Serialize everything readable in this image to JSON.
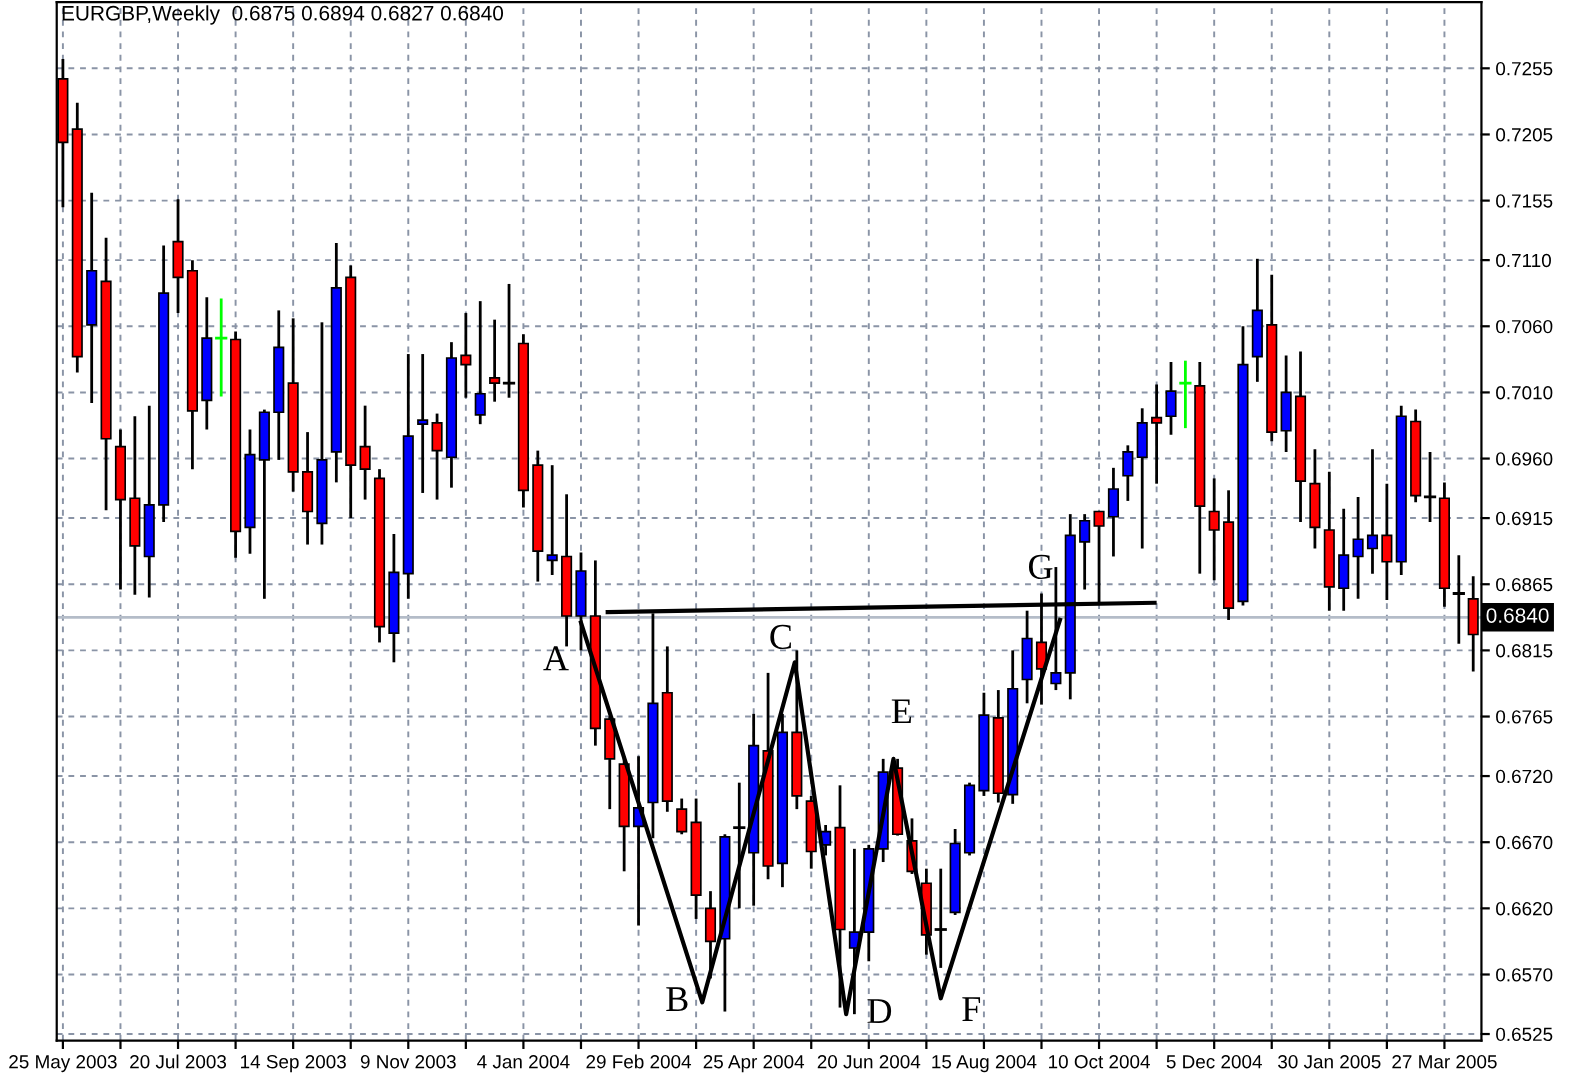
{
  "chart_data": {
    "type": "candlestick",
    "title": "EURGBP,Weekly  0.6875 0.6894 0.6827 0.6840",
    "xlim": [
      "2003-05-22",
      "2005-04-14"
    ],
    "ylim": [
      0.652,
      0.7305
    ],
    "xticks": [
      {
        "value": "2003-05-25",
        "label": "25 May 2003"
      },
      {
        "value": "2003-06-22",
        "label": null
      },
      {
        "value": "2003-07-20",
        "label": "20 Jul 2003"
      },
      {
        "value": "2003-08-17",
        "label": null
      },
      {
        "value": "2003-09-14",
        "label": "14 Sep 2003"
      },
      {
        "value": "2003-10-12",
        "label": null
      },
      {
        "value": "2003-11-09",
        "label": "9 Nov 2003"
      },
      {
        "value": "2003-12-07",
        "label": null
      },
      {
        "value": "2004-01-04",
        "label": "4 Jan 2004"
      },
      {
        "value": "2004-02-01",
        "label": null
      },
      {
        "value": "2004-02-29",
        "label": "29 Feb 2004"
      },
      {
        "value": "2004-03-28",
        "label": null
      },
      {
        "value": "2004-04-25",
        "label": "25 Apr 2004"
      },
      {
        "value": "2004-05-23",
        "label": null
      },
      {
        "value": "2004-06-20",
        "label": "20 Jun 2004"
      },
      {
        "value": "2004-07-18",
        "label": null
      },
      {
        "value": "2004-08-15",
        "label": "15 Aug 2004"
      },
      {
        "value": "2004-09-12",
        "label": null
      },
      {
        "value": "2004-10-10",
        "label": "10 Oct 2004"
      },
      {
        "value": "2004-11-07",
        "label": null
      },
      {
        "value": "2004-12-05",
        "label": "5 Dec 2004"
      },
      {
        "value": "2005-01-02",
        "label": null
      },
      {
        "value": "2005-01-30",
        "label": "30 Jan 2005"
      },
      {
        "value": "2005-02-27",
        "label": null
      },
      {
        "value": "2005-03-27",
        "label": "27 Mar 2005"
      }
    ],
    "yticks": [
      0.6525,
      {
        "value": 0.657,
        "label": "0.6570"
      },
      {
        "value": 0.662,
        "label": "0.6620"
      },
      {
        "value": 0.667,
        "label": "0.6670"
      },
      {
        "value": 0.672,
        "label": "0.6720"
      },
      0.6765,
      0.6815,
      0.6865,
      0.6915,
      {
        "value": 0.696,
        "label": "0.6960"
      },
      {
        "value": 0.701,
        "label": "0.7010"
      },
      {
        "value": 0.706,
        "label": "0.7060"
      },
      {
        "value": 0.711,
        "label": "0.7110"
      },
      0.7155,
      0.7205,
      0.7255
    ],
    "grid": true,
    "legend": false,
    "ref_lines": [
      {
        "axis": "y",
        "value": 0.684,
        "label": "0.6840",
        "color": "#b4bcc8"
      }
    ],
    "annotations": [
      {
        "text": "A",
        "x": "2004-02-01",
        "y": 0.6836
      },
      {
        "text": "B",
        "x": "2004-03-31",
        "y": 0.6549
      },
      {
        "text": "C",
        "x": "2004-05-15",
        "y": 0.6806
      },
      {
        "text": "D",
        "x": "2004-06-09",
        "y": 0.654
      },
      {
        "text": "E",
        "x": "2004-07-02",
        "y": 0.6733
      },
      {
        "text": "F",
        "x": "2004-07-25",
        "y": 0.6552
      },
      {
        "text": "G",
        "x": "2004-09-21",
        "y": 0.6838
      }
    ],
    "series": [
      {
        "x": [
          "2003-05-25",
          "2003-06-01",
          "2003-06-08",
          "2003-06-15",
          "2003-06-22",
          "2003-06-29",
          "2003-07-06",
          "2003-07-13",
          "2003-07-20",
          "2003-07-27",
          "2003-08-03",
          "2003-08-10",
          "2003-08-17",
          "2003-08-24",
          "2003-08-31",
          "2003-09-07",
          "2003-09-14",
          "2003-09-21",
          "2003-09-28",
          "2003-10-05",
          "2003-10-12",
          "2003-10-19",
          "2003-10-26",
          "2003-11-02",
          "2003-11-09",
          "2003-11-16",
          "2003-11-23",
          "2003-11-30",
          "2003-12-07",
          "2003-12-14",
          "2003-12-21",
          "2003-12-28",
          "2004-01-04",
          "2004-01-11",
          "2004-01-18",
          "2004-01-25",
          "2004-02-01",
          "2004-02-08",
          "2004-02-15",
          "2004-02-22",
          "2004-02-29",
          "2004-03-07",
          "2004-03-14",
          "2004-03-21",
          "2004-03-28",
          "2004-04-04",
          "2004-04-11",
          "2004-04-18",
          "2004-04-25",
          "2004-05-02",
          "2004-05-09",
          "2004-05-16",
          "2004-05-23",
          "2004-05-30",
          "2004-06-06",
          "2004-06-13",
          "2004-06-20",
          "2004-06-27",
          "2004-07-04",
          "2004-07-11",
          "2004-07-18",
          "2004-07-25",
          "2004-08-01",
          "2004-08-08",
          "2004-08-15",
          "2004-08-22",
          "2004-08-29",
          "2004-09-05",
          "2004-09-12",
          "2004-09-19",
          "2004-09-26",
          "2004-10-03",
          "2004-10-10",
          "2004-10-17",
          "2004-10-24",
          "2004-10-31",
          "2004-11-07",
          "2004-11-14",
          "2004-11-21",
          "2004-11-28",
          "2004-12-05",
          "2004-12-12",
          "2004-12-19",
          "2004-12-26",
          "2005-01-02",
          "2005-01-09",
          "2005-01-16",
          "2005-01-23",
          "2005-01-30",
          "2005-02-06",
          "2005-02-13",
          "2005-02-20",
          "2005-02-27",
          "2005-03-06",
          "2005-03-13",
          "2005-03-20",
          "2005-03-27",
          "2005-04-03",
          "2005-04-10"
        ],
        "ohlc": [
          [
            0.7247,
            0.7262,
            0.715,
            0.7199
          ],
          [
            0.7209,
            0.7229,
            0.7025,
            0.7037
          ],
          [
            0.7061,
            0.7161,
            0.7002,
            0.7102
          ],
          [
            0.7094,
            0.7127,
            0.6921,
            0.6975
          ],
          [
            0.6969,
            0.6982,
            0.6861,
            0.6929
          ],
          [
            0.693,
            0.6992,
            0.6857,
            0.6894
          ],
          [
            0.6886,
            0.7,
            0.6855,
            0.6925
          ],
          [
            0.6925,
            0.7121,
            0.6912,
            0.7085
          ],
          [
            0.7124,
            0.7156,
            0.707,
            0.7097
          ],
          [
            0.7102,
            0.711,
            0.6952,
            0.6996
          ],
          [
            0.7004,
            0.7082,
            0.6982,
            0.7051
          ],
          [
            0.7051,
            0.7081,
            0.7007,
            0.7051
          ],
          [
            0.705,
            0.7056,
            0.6885,
            0.6905
          ],
          [
            0.6908,
            0.6982,
            0.6888,
            0.6963
          ],
          [
            0.6959,
            0.6997,
            0.6854,
            0.6995
          ],
          [
            0.6995,
            0.7072,
            0.6959,
            0.7044
          ],
          [
            0.7017,
            0.7066,
            0.6935,
            0.695
          ],
          [
            0.695,
            0.698,
            0.6895,
            0.692
          ],
          [
            0.6911,
            0.7063,
            0.6895,
            0.6959
          ],
          [
            0.6965,
            0.7123,
            0.6942,
            0.7089
          ],
          [
            0.7097,
            0.7106,
            0.6915,
            0.6955
          ],
          [
            0.6969,
            0.7,
            0.6929,
            0.6952
          ],
          [
            0.6945,
            0.6952,
            0.6821,
            0.6833
          ],
          [
            0.6828,
            0.6903,
            0.6806,
            0.6874
          ],
          [
            0.6873,
            0.7039,
            0.6854,
            0.6977
          ],
          [
            0.6986,
            0.7039,
            0.6934,
            0.6989
          ],
          [
            0.6987,
            0.6994,
            0.6929,
            0.6966
          ],
          [
            0.6961,
            0.7048,
            0.6938,
            0.7036
          ],
          [
            0.7038,
            0.707,
            0.7006,
            0.7031
          ],
          [
            0.6993,
            0.7079,
            0.6986,
            0.7009
          ],
          [
            0.7021,
            0.7065,
            0.7003,
            0.7017
          ],
          [
            0.7017,
            0.7092,
            0.7006,
            0.7017
          ],
          [
            0.7047,
            0.7054,
            0.6923,
            0.6936
          ],
          [
            0.6955,
            0.6966,
            0.6867,
            0.689
          ],
          [
            0.6883,
            0.6955,
            0.6872,
            0.6887
          ],
          [
            0.6886,
            0.6933,
            0.6818,
            0.6841
          ],
          [
            0.6841,
            0.6889,
            0.6815,
            0.6875
          ],
          [
            0.6841,
            0.6883,
            0.6743,
            0.6756
          ],
          [
            0.6763,
            0.6765,
            0.6695,
            0.6733
          ],
          [
            0.6729,
            0.6735,
            0.6648,
            0.6682
          ],
          [
            0.6682,
            0.6735,
            0.6607,
            0.6696
          ],
          [
            0.67,
            0.6843,
            0.6673,
            0.6775
          ],
          [
            0.6783,
            0.6818,
            0.6693,
            0.6701
          ],
          [
            0.6695,
            0.6703,
            0.6676,
            0.6678
          ],
          [
            0.6685,
            0.6703,
            0.6612,
            0.663
          ],
          [
            0.662,
            0.6633,
            0.6567,
            0.6595
          ],
          [
            0.6597,
            0.6676,
            0.6542,
            0.6674
          ],
          [
            0.6681,
            0.6715,
            0.662,
            0.6681
          ],
          [
            0.6662,
            0.6767,
            0.6622,
            0.6743
          ],
          [
            0.6739,
            0.6798,
            0.6642,
            0.6652
          ],
          [
            0.6654,
            0.6767,
            0.6636,
            0.6753
          ],
          [
            0.6753,
            0.6815,
            0.6695,
            0.6705
          ],
          [
            0.6701,
            0.6705,
            0.665,
            0.6663
          ],
          [
            0.6668,
            0.6683,
            0.666,
            0.6678
          ],
          [
            0.6681,
            0.6713,
            0.6545,
            0.6604
          ],
          [
            0.659,
            0.6665,
            0.654,
            0.6602
          ],
          [
            0.6602,
            0.6668,
            0.658,
            0.6665
          ],
          [
            0.6665,
            0.6733,
            0.6655,
            0.6723
          ],
          [
            0.6726,
            0.6733,
            0.6675,
            0.6676
          ],
          [
            0.6671,
            0.6688,
            0.6646,
            0.6648
          ],
          [
            0.6639,
            0.665,
            0.6585,
            0.66
          ],
          [
            0.6604,
            0.665,
            0.6575,
            0.6604
          ],
          [
            0.6617,
            0.668,
            0.6615,
            0.6669
          ],
          [
            0.6662,
            0.6715,
            0.666,
            0.6713
          ],
          [
            0.6709,
            0.6783,
            0.6705,
            0.6766
          ],
          [
            0.6764,
            0.6785,
            0.67,
            0.6707
          ],
          [
            0.6706,
            0.6815,
            0.6699,
            0.6786
          ],
          [
            0.6793,
            0.6845,
            0.6775,
            0.6824
          ],
          [
            0.6821,
            0.6858,
            0.6774,
            0.6801
          ],
          [
            0.679,
            0.6878,
            0.6785,
            0.6798
          ],
          [
            0.6798,
            0.6918,
            0.6778,
            0.6902
          ],
          [
            0.6897,
            0.6918,
            0.6861,
            0.6913
          ],
          [
            0.692,
            0.692,
            0.6851,
            0.6909
          ],
          [
            0.6916,
            0.6953,
            0.6886,
            0.6937
          ],
          [
            0.6947,
            0.697,
            0.6928,
            0.6965
          ],
          [
            0.6961,
            0.6998,
            0.6892,
            0.6987
          ],
          [
            0.6991,
            0.7016,
            0.6941,
            0.6987
          ],
          [
            0.6992,
            0.7033,
            0.6978,
            0.7011
          ],
          [
            0.7017,
            0.7034,
            0.6983,
            0.7017
          ],
          [
            0.7015,
            0.7033,
            0.6873,
            0.6924
          ],
          [
            0.692,
            0.6945,
            0.6868,
            0.6906
          ],
          [
            0.6912,
            0.6936,
            0.6838,
            0.6847
          ],
          [
            0.6852,
            0.706,
            0.6849,
            0.7031
          ],
          [
            0.7037,
            0.7111,
            0.7018,
            0.7072
          ],
          [
            0.7061,
            0.7099,
            0.6973,
            0.698
          ],
          [
            0.6981,
            0.7038,
            0.6965,
            0.701
          ],
          [
            0.7007,
            0.7041,
            0.6912,
            0.6943
          ],
          [
            0.6941,
            0.6967,
            0.6892,
            0.6908
          ],
          [
            0.6906,
            0.695,
            0.6845,
            0.6863
          ],
          [
            0.6862,
            0.6922,
            0.6845,
            0.6887
          ],
          [
            0.6886,
            0.6931,
            0.6854,
            0.6899
          ],
          [
            0.6892,
            0.6967,
            0.6873,
            0.6902
          ],
          [
            0.6902,
            0.6941,
            0.6853,
            0.6882
          ],
          [
            0.6882,
            0.7,
            0.6872,
            0.6992
          ],
          [
            0.6988,
            0.6997,
            0.6927,
            0.6932
          ],
          [
            0.6931,
            0.6965,
            0.6912,
            0.6931
          ],
          [
            0.693,
            0.6942,
            0.6848,
            0.6862
          ],
          [
            0.6858,
            0.6887,
            0.682,
            0.6858
          ],
          [
            0.6854,
            0.6871,
            0.6799,
            0.6827
          ]
        ],
        "colors": [
          "#ff0000",
          "#ff0000",
          "#0000ff",
          "#ff0000",
          "#ff0000",
          "#ff0000",
          "#0000ff",
          "#0000ff",
          "#ff0000",
          "#ff0000",
          "#0000ff",
          "#00ff00",
          "#ff0000",
          "#0000ff",
          "#0000ff",
          "#0000ff",
          "#ff0000",
          "#ff0000",
          "#0000ff",
          "#0000ff",
          "#ff0000",
          "#ff0000",
          "#ff0000",
          "#0000ff",
          "#0000ff",
          "#0000ff",
          "#ff0000",
          "#0000ff",
          "#ff0000",
          "#0000ff",
          "#ff0000",
          "#000000",
          "#ff0000",
          "#ff0000",
          "#0000ff",
          "#ff0000",
          "#0000ff",
          "#ff0000",
          "#ff0000",
          "#ff0000",
          "#0000ff",
          "#0000ff",
          "#ff0000",
          "#ff0000",
          "#ff0000",
          "#ff0000",
          "#0000ff",
          "#000000",
          "#0000ff",
          "#ff0000",
          "#0000ff",
          "#ff0000",
          "#ff0000",
          "#0000ff",
          "#ff0000",
          "#0000ff",
          "#0000ff",
          "#0000ff",
          "#ff0000",
          "#ff0000",
          "#ff0000",
          "#000000",
          "#0000ff",
          "#0000ff",
          "#0000ff",
          "#ff0000",
          "#0000ff",
          "#0000ff",
          "#ff0000",
          "#0000ff",
          "#0000ff",
          "#0000ff",
          "#ff0000",
          "#0000ff",
          "#0000ff",
          "#0000ff",
          "#ff0000",
          "#0000ff",
          "#00ff00",
          "#ff0000",
          "#ff0000",
          "#ff0000",
          "#0000ff",
          "#0000ff",
          "#ff0000",
          "#0000ff",
          "#ff0000",
          "#ff0000",
          "#ff0000",
          "#0000ff",
          "#0000ff",
          "#0000ff",
          "#ff0000",
          "#0000ff",
          "#ff0000",
          "#000000",
          "#ff0000",
          "#000000",
          "#ff0000"
        ]
      },
      {
        "type": "line",
        "color": "#000000",
        "x": [
          "2004-02-01",
          "2004-03-31",
          "2004-05-15",
          "2004-06-09",
          "2004-07-02",
          "2004-07-25",
          "2004-09-21"
        ],
        "values": [
          0.6836,
          0.6549,
          0.6806,
          0.654,
          0.6733,
          0.6552,
          0.6838
        ]
      },
      {
        "type": "line",
        "color": "#000000",
        "x": [
          "2004-02-14",
          "2004-11-06"
        ],
        "values": [
          0.6844,
          0.6851
        ]
      }
    ]
  }
}
